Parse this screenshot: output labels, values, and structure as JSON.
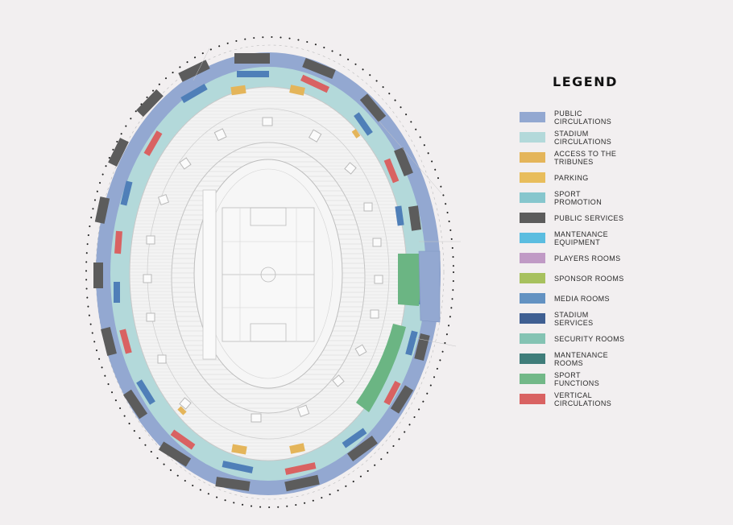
{
  "legend": {
    "title": "LEGEND",
    "items": [
      {
        "label": "PUBLIC CIRCULATIONS",
        "color": "#93a8d1"
      },
      {
        "label": "STADIUM CIRCULATIONS",
        "color": "#b3d9da"
      },
      {
        "label": "ACCESS TO THE TRIBUNES",
        "color": "#e4b55a"
      },
      {
        "label": "PARKING",
        "color": "#e8bd5c"
      },
      {
        "label": "SPORT PROMOTION",
        "color": "#86c6cd"
      },
      {
        "label": "PUBLIC SERVICES",
        "color": "#5c5c5c"
      },
      {
        "label": "MANTENANCE EQUIPMENT",
        "color": "#5bbde0"
      },
      {
        "label": "PLAYERS ROOMS",
        "color": "#c09ac5"
      },
      {
        "label": "SPONSOR ROOMS",
        "color": "#a7c15e"
      },
      {
        "label": "MEDIA ROOMS",
        "color": "#6392c2"
      },
      {
        "label": "STADIUM SERVICES",
        "color": "#3f5f92"
      },
      {
        "label": "SECURITY ROOMS",
        "color": "#84c3b3"
      },
      {
        "label": "MANTENANCE ROOMS",
        "color": "#3f7d7a"
      },
      {
        "label": "SPORT FUNCTIONS",
        "color": "#72b888"
      },
      {
        "label": "VERTICAL CIRCULATIONS",
        "color": "#d96262"
      }
    ]
  }
}
